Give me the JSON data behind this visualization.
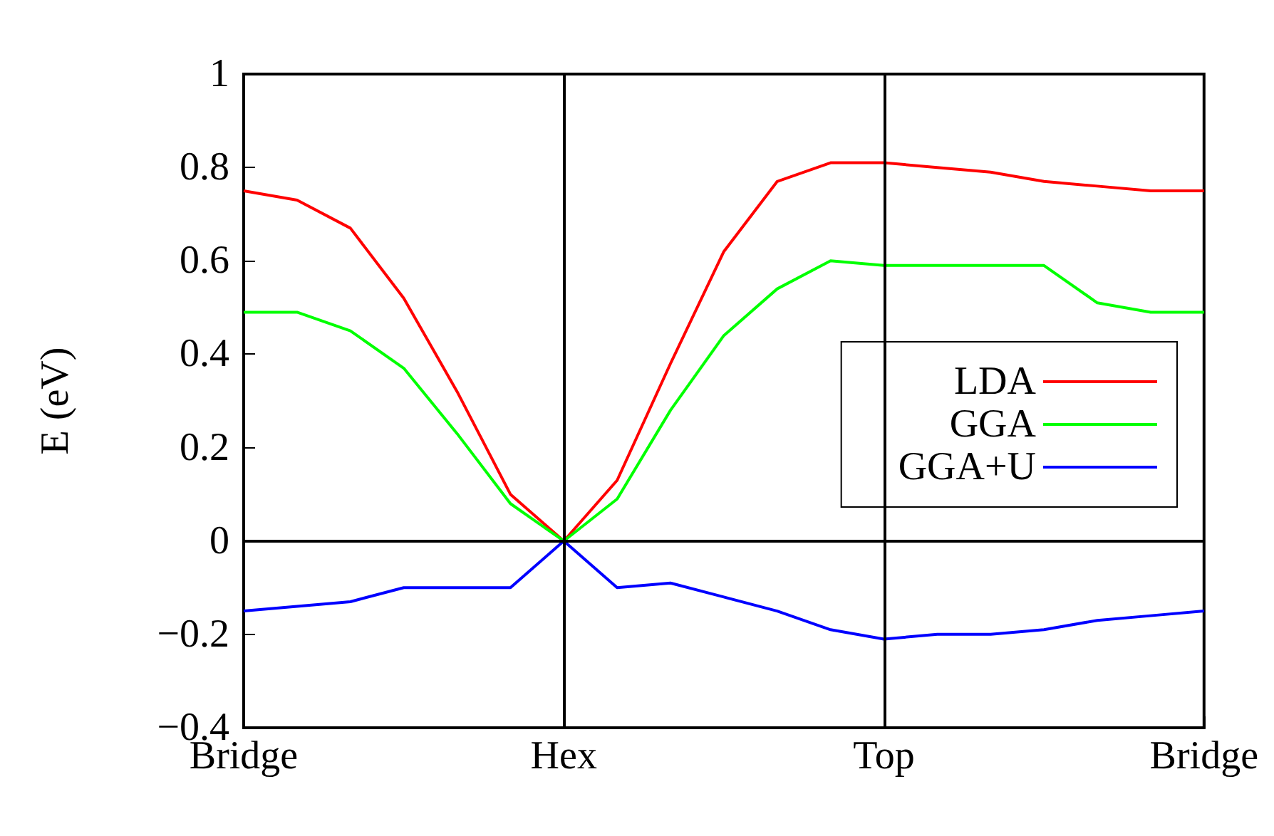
{
  "chart_data": {
    "type": "line",
    "ylabel": "E (eV)",
    "categories": [
      "Bridge",
      null,
      null,
      null,
      null,
      null,
      "Hex",
      null,
      null,
      null,
      null,
      null,
      "Top",
      null,
      null,
      null,
      null,
      null,
      "Bridge"
    ],
    "ylim": [
      -0.4,
      1
    ],
    "yticks": [
      {
        "value": -0.4,
        "label": "−0.4"
      },
      {
        "value": -0.2,
        "label": "−0.2"
      },
      0,
      0.2,
      0.4,
      0.6,
      0.8,
      1
    ],
    "series": [
      {
        "name": "LDA",
        "color": "#ff0000",
        "values": [
          0.75,
          0.73,
          0.67,
          0.52,
          0.32,
          0.1,
          0,
          0.13,
          0.38,
          0.62,
          0.77,
          0.81,
          0.81,
          0.8,
          0.79,
          0.77,
          0.76,
          0.75,
          0.75
        ]
      },
      {
        "name": "GGA",
        "color": "#00ff00",
        "values": [
          0.49,
          0.49,
          0.45,
          0.37,
          0.23,
          0.08,
          0,
          0.09,
          0.28,
          0.44,
          0.54,
          0.6,
          0.59,
          0.59,
          0.59,
          0.59,
          0.51,
          0.49,
          0.49
        ]
      },
      {
        "name": "GGA+U",
        "color": "#0000ff",
        "values": [
          -0.15,
          -0.14,
          -0.13,
          -0.1,
          -0.1,
          -0.1,
          0,
          -0.1,
          -0.09,
          -0.12,
          -0.15,
          -0.19,
          -0.21,
          -0.2,
          -0.2,
          -0.19,
          -0.17,
          -0.16,
          -0.15
        ]
      }
    ],
    "ref_lines": [
      {
        "axis": "x",
        "value": "Hex"
      },
      {
        "axis": "x",
        "value": "Top"
      },
      {
        "axis": "y",
        "value": 0
      }
    ],
    "legend": "right",
    "grid": false,
    "marker": "none",
    "line_style": "solid"
  }
}
